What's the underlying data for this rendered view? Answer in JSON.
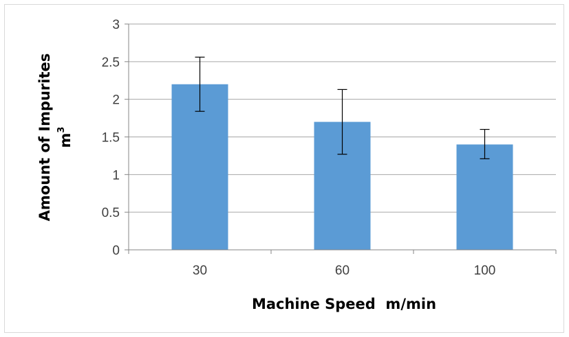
{
  "chart_data": {
    "type": "bar",
    "title": "",
    "xlabel": "Machine Speed  m/min",
    "ylabel": "Amount of Impurites",
    "ylabel_unit": "m",
    "ylabel_unit_superscript": "3",
    "categories": [
      "30",
      "60",
      "100"
    ],
    "values": [
      2.2,
      1.7,
      1.4
    ],
    "error_low": [
      1.84,
      1.27,
      1.21
    ],
    "error_high": [
      2.56,
      2.13,
      1.6
    ],
    "ylim": [
      0,
      3
    ],
    "yticks": [
      "0",
      "0.5",
      "1",
      "1.5",
      "2",
      "2.5",
      "3"
    ],
    "grid": true,
    "legend": "none",
    "bar_color": "#5b9bd5",
    "grid_color": "#a6a6a6",
    "axis_color": "#868686",
    "error_bar_color": "#000000"
  }
}
